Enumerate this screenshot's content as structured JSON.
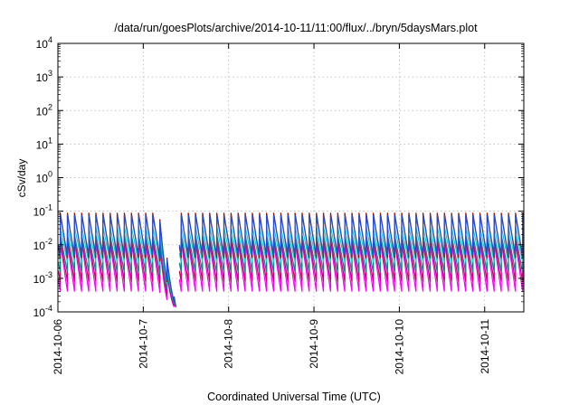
{
  "chart_data": {
    "type": "line",
    "title": "/data/run/goesPlots/archive/2014-10-11/11:00/flux/../bryn/5daysMars.plot",
    "xlabel": "Coordinated Universal Time (UTC)",
    "ylabel": "cSv/day",
    "y_scale": "log",
    "ylim_exponents": [
      -4,
      4
    ],
    "y_tick_labels": [
      {
        "base": "10",
        "exp": "-4"
      },
      {
        "base": "10",
        "exp": "-3"
      },
      {
        "base": "10",
        "exp": "-2"
      },
      {
        "base": "10",
        "exp": "-1"
      },
      {
        "base": "10",
        "exp": "0"
      },
      {
        "base": "10",
        "exp": "1"
      },
      {
        "base": "10",
        "exp": "2"
      },
      {
        "base": "10",
        "exp": "3"
      },
      {
        "base": "10",
        "exp": "4"
      }
    ],
    "xlim": [
      "2014-10-06 00:00",
      "2014-10-11 11:00"
    ],
    "x_tick_labels": [
      "2014-10-06",
      "2014-10-7",
      "2014-10-8",
      "2014-10-9",
      "2014-10-10",
      "2014-10-11"
    ],
    "grid": true,
    "gap": {
      "start": "2014-10-07 09:20",
      "end": "2014-10-07 10:00",
      "min_value": 0.0001
    },
    "spikes": {
      "period_hours": 2.0,
      "first_peak": "2014-10-06 00:40",
      "peak_values": {
        "blue": 0.075,
        "dark_red": 0.09,
        "cyan": 0.035,
        "teal": 0.02,
        "magenta": 0.012,
        "violet": 0.015
      },
      "trough_values": {
        "blue": 0.005,
        "dark_red": 0.004,
        "cyan": 0.003,
        "teal": 0.0015,
        "magenta": 0.0004,
        "violet": 0.0008
      }
    },
    "series": [
      {
        "color": "#cc0066"
      },
      {
        "color": "#1f4fd8"
      },
      {
        "color": "#008b8b"
      },
      {
        "color": "#22c7c7"
      },
      {
        "color": "#8b1a1a"
      },
      {
        "color": "#ff00ff"
      }
    ]
  }
}
